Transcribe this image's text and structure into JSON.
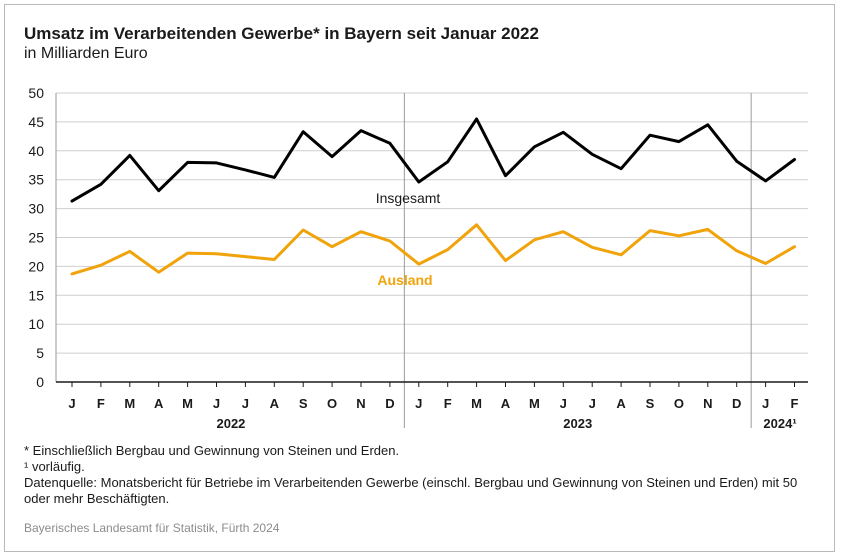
{
  "title": "Umsatz im Verarbeitenden Gewerbe* in Bayern seit Januar 2022",
  "subtitle": "in Milliarden Euro",
  "footnotes": [
    "* Einschließlich Bergbau und Gewinnung von Steinen und Erden.",
    "¹ vorläufig.",
    "Datenquelle: Monatsbericht für Betriebe im Verarbeitenden Gewerbe (einschl. Bergbau und Gewinnung von Steinen und Erden) mit 50 oder mehr Beschäftigten."
  ],
  "source": "Bayerisches Landesamt für Statistik, Fürth 2024",
  "chart_data": {
    "type": "line",
    "categories": [
      "J",
      "F",
      "M",
      "A",
      "M",
      "J",
      "J",
      "A",
      "S",
      "O",
      "N",
      "D",
      "J",
      "F",
      "M",
      "A",
      "M",
      "J",
      "J",
      "A",
      "S",
      "O",
      "N",
      "D",
      "J",
      "F"
    ],
    "year_labels": [
      {
        "label": "2022",
        "start": 0,
        "end": 11
      },
      {
        "label": "2023",
        "start": 12,
        "end": 23
      },
      {
        "label": "2024¹",
        "start": 24,
        "end": 25
      }
    ],
    "ylim": [
      0,
      50
    ],
    "yticks": [
      0,
      5,
      10,
      15,
      20,
      25,
      30,
      35,
      40,
      45,
      50
    ],
    "grid": true,
    "series": [
      {
        "name": "Insgesamt",
        "color": "#000000",
        "values": [
          31.3,
          34.2,
          39.2,
          33.1,
          38.0,
          37.9,
          36.7,
          35.4,
          43.3,
          39.0,
          43.5,
          41.3,
          34.6,
          38.1,
          45.5,
          35.7,
          40.7,
          43.2,
          39.4,
          36.9,
          42.7,
          41.6,
          44.5,
          38.2,
          34.8,
          38.5
        ]
      },
      {
        "name": "Ausland",
        "color": "#f0a30a",
        "values": [
          18.7,
          20.2,
          22.6,
          19.0,
          22.3,
          22.2,
          21.7,
          21.2,
          26.3,
          23.4,
          26.0,
          24.4,
          20.4,
          22.9,
          27.2,
          21.0,
          24.6,
          26.0,
          23.3,
          22.0,
          26.2,
          25.3,
          26.4,
          22.7,
          20.5,
          23.4
        ]
      }
    ]
  }
}
